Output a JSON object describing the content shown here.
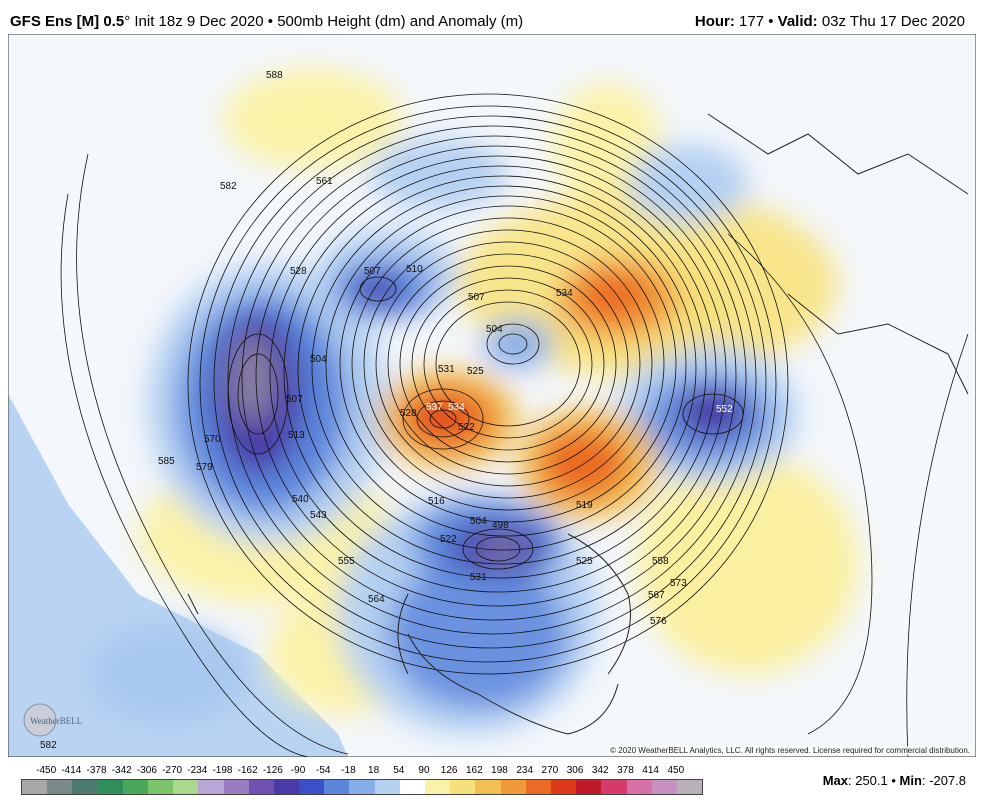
{
  "header": {
    "model": "GFS Ens [M] 0.5",
    "degree": "°",
    "init": " Init 18z 9 Dec 2020 • 500mb Height (dm) and Anomaly (m)",
    "hour_label": "Hour:",
    "hour_value": " 177 • ",
    "valid_label": "Valid:",
    "valid_value": " 03z Thu 17 Dec 2020"
  },
  "map": {
    "contour_labels": [
      {
        "id": "c588",
        "text": "588"
      },
      {
        "id": "c582",
        "text": "582"
      },
      {
        "id": "c561",
        "text": "561"
      },
      {
        "id": "c528",
        "text": "528"
      },
      {
        "id": "c507a",
        "text": "507"
      },
      {
        "id": "c510",
        "text": "510"
      },
      {
        "id": "c507b",
        "text": "507"
      },
      {
        "id": "c504a",
        "text": "504"
      },
      {
        "id": "c534a",
        "text": "534"
      },
      {
        "id": "c504b",
        "text": "504"
      },
      {
        "id": "c507c",
        "text": "507"
      },
      {
        "id": "c513",
        "text": "513"
      },
      {
        "id": "c531",
        "text": "531"
      },
      {
        "id": "c525a",
        "text": "525"
      },
      {
        "id": "c537",
        "text": "537"
      },
      {
        "id": "c534b",
        "text": "534"
      },
      {
        "id": "c528b",
        "text": "528"
      },
      {
        "id": "c522a",
        "text": "522"
      },
      {
        "id": "c552",
        "text": "552"
      },
      {
        "id": "c585",
        "text": "585"
      },
      {
        "id": "c579",
        "text": "579"
      },
      {
        "id": "c570",
        "text": "570"
      },
      {
        "id": "c540",
        "text": "540"
      },
      {
        "id": "c543",
        "text": "543"
      },
      {
        "id": "c516",
        "text": "516"
      },
      {
        "id": "c504c",
        "text": "504"
      },
      {
        "id": "c498",
        "text": "498"
      },
      {
        "id": "c519",
        "text": "519"
      },
      {
        "id": "c522b",
        "text": "522"
      },
      {
        "id": "c531b",
        "text": "531"
      },
      {
        "id": "c525b",
        "text": "525"
      },
      {
        "id": "c555",
        "text": "555"
      },
      {
        "id": "c564",
        "text": "564"
      },
      {
        "id": "c558",
        "text": "558"
      },
      {
        "id": "c567",
        "text": "567"
      },
      {
        "id": "c573",
        "text": "573"
      },
      {
        "id": "c576",
        "text": "576"
      },
      {
        "id": "c582b",
        "text": "582"
      }
    ]
  },
  "copyright": "© 2020 WeatherBELL Analytics, LLC. All rights reserved. License required for commercial distribution.",
  "logo_text": "WeatherBELL",
  "scale": {
    "ticks": [
      "-450",
      "-414",
      "-378",
      "-342",
      "-306",
      "-270",
      "-234",
      "-198",
      "-162",
      "-126",
      "-90",
      "-54",
      "-18",
      "18",
      "54",
      "90",
      "126",
      "162",
      "198",
      "234",
      "270",
      "306",
      "342",
      "378",
      "414",
      "450"
    ],
    "colors": [
      "#a8a8a8",
      "#7a8a8a",
      "#4d7a6e",
      "#2f8f5a",
      "#4aa85a",
      "#7cc46a",
      "#a9d98c",
      "#b8a6d6",
      "#9a7cc4",
      "#7050b0",
      "#4a3aa8",
      "#3a50c8",
      "#5b86dc",
      "#86aee8",
      "#b4d0f2",
      "#ffffff",
      "#fbf2a8",
      "#f6e07a",
      "#f2c050",
      "#f19a3a",
      "#ec6a24",
      "#dd3a1a",
      "#c01a28",
      "#d63a6a",
      "#d870a8",
      "#c890c0",
      "#b8b0b8"
    ],
    "max_label": "Max",
    "max_value": ": 250.1 • ",
    "min_label": "Min",
    "min_value": ": -207.8"
  }
}
